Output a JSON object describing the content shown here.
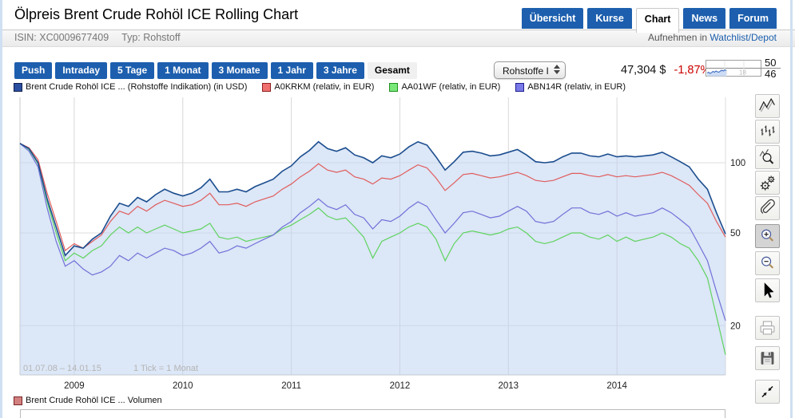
{
  "page": {
    "title": "Ölpreis Brent Crude Rohöl ICE Rolling Chart",
    "isin": "ISIN: XC0009677409",
    "typ": "Typ: Rohstoff",
    "watchlist_prefix": "Aufnehmen in",
    "watchlist_link": "Watchlist/Depot"
  },
  "nav": {
    "tabs": [
      {
        "label": "Übersicht",
        "active": false
      },
      {
        "label": "Kurse",
        "active": false
      },
      {
        "label": "Chart",
        "active": true
      },
      {
        "label": "News",
        "active": false
      },
      {
        "label": "Forum",
        "active": false
      }
    ]
  },
  "toolbar": {
    "ranges": [
      "Push",
      "Intraday",
      "5 Tage",
      "1 Monat",
      "3 Monate",
      "1 Jahr",
      "3 Jahre"
    ],
    "active_range": "Gesamt",
    "benchmark_select": "Rohstoffe I",
    "price": "47,304 $",
    "change": "-1,87%",
    "change_color": "#cc0000",
    "mini": {
      "high": "50",
      "low": "46",
      "hour_ticks": [
        "13",
        "18"
      ],
      "values": [
        46.8,
        47.0,
        46.7,
        46.9,
        47.2,
        47.0,
        47.3,
        47.1,
        47.0,
        47.3,
        47.5,
        47.3,
        47.6,
        47.4
      ]
    }
  },
  "legend_squares": [
    {
      "fill": "#2b4fa0",
      "border": "#101f4e"
    },
    {
      "fill": "#f07070",
      "border": "#8e1f1f"
    },
    {
      "fill": "#79e879",
      "border": "#1f8e1f"
    },
    {
      "fill": "#7979e8",
      "border": "#1f1f8e"
    }
  ],
  "chart_data": {
    "type": "line",
    "x_start": "01.07.08",
    "x_end": "14.01.15",
    "range_label": "01.07.08 – 14.01.15",
    "tick_note": "1 Tick = 1 Monat",
    "x_interval": "monthly",
    "x_tick_labels": [
      "2009",
      "2010",
      "2011",
      "2012",
      "2013",
      "2014"
    ],
    "x_tick_idx": [
      6,
      18,
      30,
      42,
      54,
      66
    ],
    "y_axis": {
      "scale": "log",
      "ticks": [
        100,
        50,
        20
      ]
    },
    "area_fill": "#b9cff0",
    "series": [
      {
        "name": "Brent Crude Rohöl ICE ... (Rohstoffe Indikation) (in USD)",
        "color": "#1b4d8e",
        "fill": true,
        "values": [
          121,
          115,
          100,
          70,
          53,
          40,
          44,
          43,
          47,
          50,
          59,
          67,
          65,
          71,
          68,
          73,
          77,
          74,
          72,
          74,
          78,
          85,
          75,
          75,
          77,
          75,
          79,
          82,
          85,
          92,
          97,
          106,
          113,
          123,
          115,
          112,
          116,
          108,
          105,
          100,
          107,
          105,
          109,
          117,
          123,
          119,
          106,
          93,
          101,
          111,
          112,
          110,
          107,
          108,
          111,
          114,
          108,
          101,
          100,
          101,
          106,
          110,
          110,
          107,
          106,
          109,
          106,
          107,
          106,
          107,
          108,
          111,
          106,
          101,
          96,
          85,
          77,
          61,
          49.5
        ]
      },
      {
        "name": "A0KRKM (relativ, in EUR)",
        "color": "#e05c5c",
        "fill": false,
        "values": [
          121,
          116,
          103,
          74,
          56,
          42,
          45,
          43,
          46,
          49,
          56,
          62,
          60,
          65,
          62,
          66,
          69,
          67,
          65,
          66,
          69,
          74,
          66,
          66,
          67,
          65,
          68,
          70,
          72,
          77,
          81,
          87,
          92,
          99,
          93,
          91,
          93,
          87,
          85,
          81,
          86,
          85,
          88,
          93,
          98,
          95,
          86,
          76,
          82,
          89,
          90,
          88,
          86,
          87,
          89,
          91,
          88,
          84,
          83,
          84,
          87,
          90,
          90,
          88,
          87,
          89,
          87,
          88,
          87,
          88,
          89,
          91,
          88,
          84,
          80,
          73,
          67,
          56,
          48
        ]
      },
      {
        "name": "AA01WF (relativ, in EUR)",
        "color": "#5fd35f",
        "fill": false,
        "values": [
          121,
          114,
          99,
          68,
          50,
          38,
          41,
          39,
          42,
          44,
          49,
          53,
          50,
          53,
          50,
          52,
          54,
          52,
          50,
          51,
          52,
          55,
          48,
          47,
          48,
          46,
          47,
          48,
          49,
          52,
          54,
          57,
          60,
          64,
          59,
          57,
          58,
          53,
          48,
          39,
          46,
          48,
          50,
          53,
          55,
          53,
          47,
          38,
          45,
          50,
          51,
          50,
          49,
          50,
          52,
          53,
          50,
          46,
          45,
          46,
          48,
          50,
          50,
          48,
          47,
          49,
          46,
          48,
          46,
          47,
          48,
          50,
          48,
          45,
          43,
          38,
          32,
          22,
          15
        ]
      },
      {
        "name": "ABN14R (relativ, in EUR)",
        "color": "#7070d8",
        "fill": false,
        "values": [
          121,
          112,
          96,
          64,
          46,
          36,
          38,
          35,
          33,
          34,
          36,
          40,
          38,
          41,
          39,
          41,
          43,
          42,
          40,
          41,
          43,
          46,
          41,
          42,
          44,
          43,
          45,
          47,
          49,
          53,
          56,
          61,
          65,
          70,
          65,
          63,
          66,
          60,
          58,
          52,
          57,
          56,
          59,
          64,
          68,
          65,
          57,
          50,
          55,
          61,
          62,
          60,
          58,
          59,
          62,
          65,
          62,
          56,
          55,
          56,
          60,
          64,
          64,
          61,
          60,
          62,
          59,
          61,
          59,
          60,
          61,
          64,
          61,
          57,
          53,
          45,
          38,
          28,
          21
        ]
      }
    ]
  },
  "volume": {
    "label": "Brent Crude Rohöl ICE ... Volumen",
    "fill": "#d28080",
    "border": "#7a2626"
  },
  "sidebar_tools": [
    "chart-type-lines",
    "chart-type-bars",
    "chart-zoom-mode",
    "settings",
    "link",
    "zoom-in",
    "zoom-out",
    "pointer",
    "print",
    "save",
    "collapse"
  ],
  "colors": {
    "accent_blue": "#1d5fae",
    "grid": "#dedede"
  }
}
